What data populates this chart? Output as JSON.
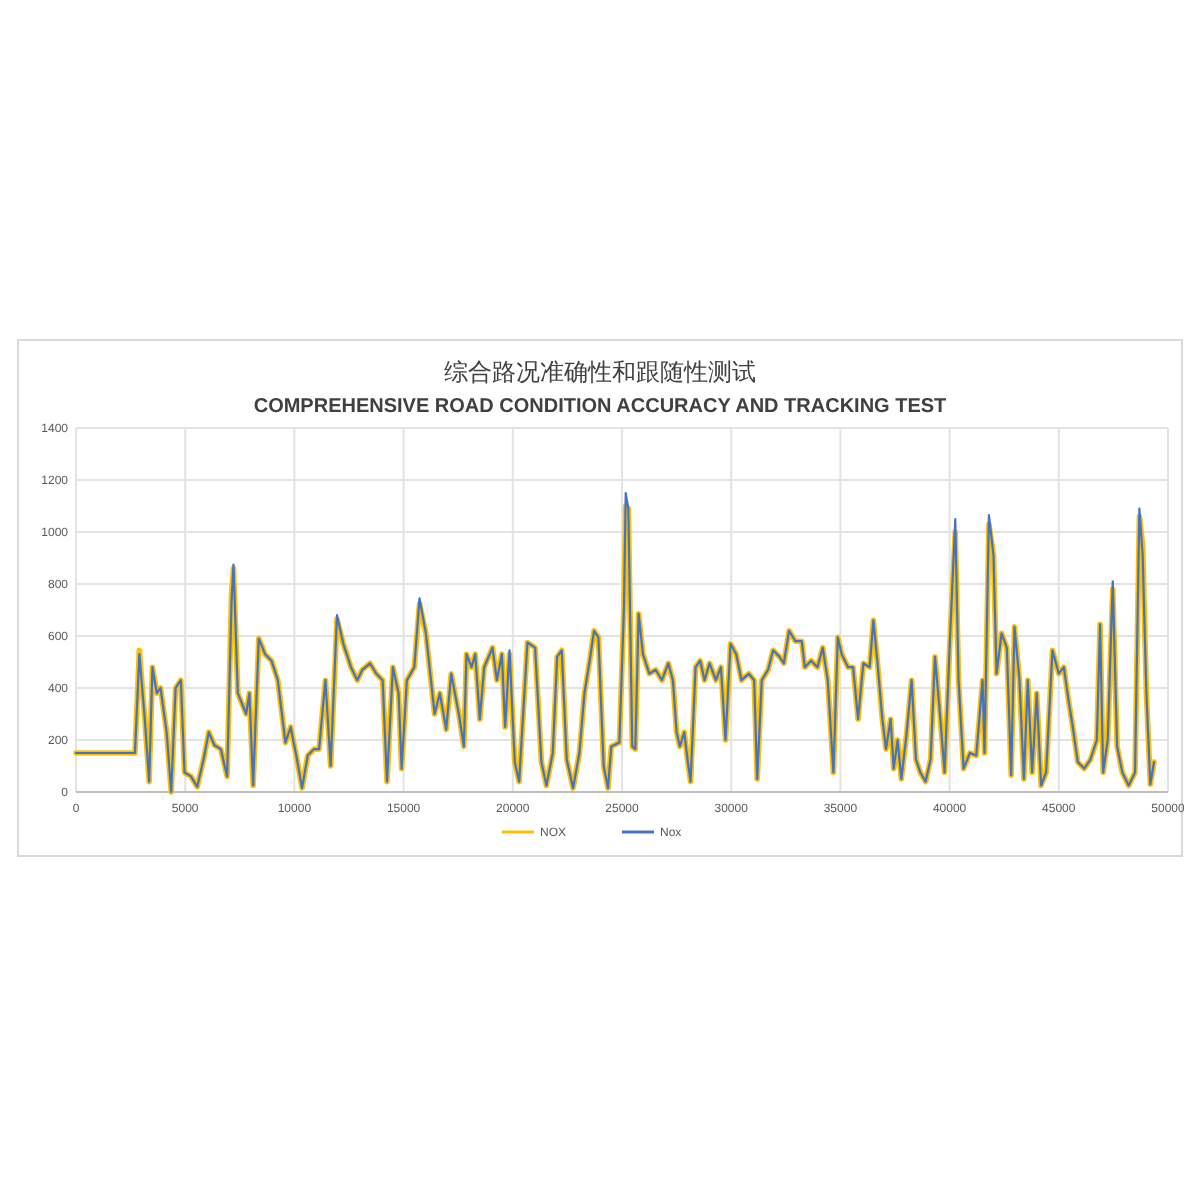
{
  "chart_data": {
    "type": "line",
    "title": "综合路况准确性和跟随性测试",
    "subtitle": "COMPREHENSIVE ROAD CONDITION ACCURACY AND TRACKING TEST",
    "x": [
      0,
      2700,
      2900,
      3150,
      3350,
      3500,
      3700,
      3870,
      4150,
      4360,
      4560,
      4800,
      4970,
      5260,
      5550,
      5840,
      6080,
      6340,
      6630,
      6920,
      7120,
      7210,
      7410,
      7790,
      7940,
      8110,
      8370,
      8660,
      8950,
      9240,
      9590,
      9830,
      10120,
      10350,
      10610,
      10900,
      11130,
      11420,
      11660,
      11950,
      12240,
      12590,
      12880,
      13110,
      13460,
      13750,
      14040,
      14240,
      14510,
      14770,
      14910,
      15150,
      15490,
      15730,
      16020,
      16220,
      16420,
      16660,
      16950,
      17180,
      17530,
      17760,
      17880,
      18110,
      18280,
      18490,
      18690,
      19070,
      19270,
      19500,
      19650,
      19850,
      20090,
      20290,
      20670,
      21020,
      21310,
      21540,
      21830,
      22030,
      22240,
      22470,
      22760,
      23050,
      23280,
      23520,
      23720,
      23920,
      24160,
      24360,
      24510,
      24880,
      25090,
      25170,
      25290,
      25470,
      25610,
      25760,
      25960,
      26250,
      26540,
      26830,
      27120,
      27330,
      27500,
      27650,
      27850,
      28000,
      28140,
      28370,
      28580,
      28780,
      29010,
      29300,
      29530,
      29740,
      29970,
      30230,
      30470,
      30810,
      31050,
      31190,
      31400,
      31690,
      31920,
      32210,
      32410,
      32650,
      32940,
      33230,
      33370,
      33660,
      33950,
      34190,
      34420,
      34680,
      34880,
      35060,
      35350,
      35580,
      35810,
      36050,
      36340,
      36510,
      36690,
      36920,
      37090,
      37300,
      37440,
      37620,
      37790,
      38020,
      38260,
      38460,
      38660,
      38900,
      39130,
      39330,
      39530,
      39770,
      40000,
      40260,
      40410,
      40640,
      40930,
      41220,
      41510,
      41600,
      41800,
      42010,
      42150,
      42380,
      42620,
      42820,
      42970,
      43200,
      43400,
      43580,
      43780,
      43990,
      44190,
      44420,
      44710,
      45000,
      45230,
      45440,
      45640,
      45870,
      46160,
      46450,
      46740,
      46890,
      47030,
      47240,
      47470,
      47670,
      47910,
      48200,
      48490,
      48690,
      48840,
      49010,
      49190,
      49360
    ],
    "series": [
      {
        "name": "NOX",
        "color": "#ffc000",
        "values": [
          150,
          150,
          545,
          280,
          40,
          480,
          380,
          400,
          230,
          0,
          400,
          430,
          75,
          60,
          20,
          125,
          230,
          180,
          165,
          60,
          760,
          860,
          380,
          300,
          380,
          25,
          590,
          530,
          505,
          430,
          190,
          250,
          125,
          15,
          140,
          165,
          165,
          430,
          100,
          665,
          570,
          480,
          430,
          470,
          495,
          455,
          430,
          40,
          480,
          380,
          90,
          430,
          480,
          725,
          610,
          455,
          300,
          380,
          240,
          455,
          300,
          175,
          530,
          480,
          530,
          280,
          480,
          555,
          430,
          530,
          250,
          530,
          115,
          40,
          575,
          555,
          115,
          25,
          150,
          520,
          545,
          125,
          15,
          150,
          380,
          505,
          620,
          595,
          100,
          15,
          175,
          190,
          710,
          1100,
          1090,
          175,
          165,
          685,
          530,
          455,
          470,
          430,
          495,
          430,
          230,
          175,
          230,
          125,
          40,
          480,
          505,
          430,
          495,
          430,
          480,
          200,
          570,
          530,
          430,
          455,
          430,
          50,
          430,
          470,
          545,
          520,
          495,
          620,
          580,
          580,
          480,
          505,
          480,
          555,
          430,
          75,
          595,
          530,
          480,
          480,
          280,
          495,
          480,
          660,
          505,
          280,
          165,
          280,
          90,
          200,
          50,
          215,
          430,
          125,
          75,
          40,
          125,
          520,
          330,
          75,
          555,
          1000,
          430,
          90,
          150,
          140,
          430,
          150,
          1030,
          910,
          455,
          610,
          555,
          65,
          635,
          430,
          50,
          430,
          75,
          380,
          25,
          75,
          545,
          455,
          480,
          355,
          250,
          115,
          90,
          125,
          200,
          645,
          75,
          200,
          780,
          175,
          75,
          25,
          75,
          1060,
          950,
          380,
          30,
          115
        ]
      },
      {
        "name": "Nox",
        "color": "#4472c4",
        "values": [
          150,
          150,
          530,
          280,
          40,
          480,
          380,
          400,
          230,
          0,
          400,
          430,
          75,
          60,
          20,
          125,
          230,
          180,
          165,
          60,
          730,
          875,
          380,
          300,
          380,
          25,
          590,
          530,
          505,
          430,
          190,
          250,
          125,
          15,
          140,
          165,
          165,
          430,
          100,
          680,
          570,
          480,
          430,
          470,
          495,
          455,
          430,
          40,
          480,
          380,
          90,
          430,
          480,
          745,
          610,
          455,
          300,
          380,
          240,
          455,
          300,
          175,
          530,
          480,
          530,
          280,
          480,
          555,
          430,
          530,
          250,
          545,
          115,
          40,
          575,
          555,
          115,
          25,
          150,
          520,
          545,
          125,
          15,
          150,
          380,
          505,
          620,
          595,
          100,
          15,
          175,
          190,
          710,
          1150,
          1090,
          175,
          165,
          685,
          530,
          455,
          470,
          430,
          495,
          430,
          230,
          175,
          230,
          125,
          40,
          480,
          505,
          430,
          495,
          430,
          480,
          200,
          570,
          530,
          430,
          455,
          430,
          50,
          430,
          470,
          545,
          520,
          495,
          620,
          580,
          580,
          480,
          505,
          480,
          555,
          430,
          75,
          595,
          530,
          480,
          480,
          280,
          495,
          480,
          660,
          505,
          280,
          165,
          280,
          90,
          200,
          50,
          215,
          430,
          125,
          75,
          40,
          125,
          520,
          330,
          75,
          555,
          1050,
          430,
          90,
          150,
          140,
          430,
          150,
          1065,
          910,
          455,
          610,
          555,
          65,
          635,
          430,
          50,
          430,
          75,
          380,
          25,
          75,
          545,
          455,
          480,
          355,
          250,
          115,
          90,
          125,
          200,
          645,
          75,
          200,
          810,
          175,
          75,
          25,
          75,
          1090,
          910,
          380,
          30,
          115
        ]
      }
    ],
    "xlim": [
      0,
      50000
    ],
    "xticks": [
      0,
      5000,
      10000,
      15000,
      20000,
      25000,
      30000,
      35000,
      40000,
      45000,
      50000
    ],
    "ylim": [
      0,
      1400
    ],
    "yticks": [
      0,
      200,
      400,
      600,
      800,
      1000,
      1200,
      1400
    ],
    "grid": true,
    "legend": "bottom",
    "line_style": "solid"
  }
}
